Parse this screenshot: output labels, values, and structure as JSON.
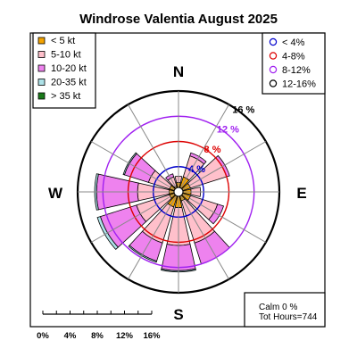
{
  "chart_data": {
    "type": "windrose",
    "title": "Windrose  Valentia August 2025",
    "compass_labels": {
      "north": "N",
      "east": "E",
      "south": "S",
      "west": "W"
    },
    "speed_legend": [
      {
        "label": "< 5  kt",
        "color": "#f4a300"
      },
      {
        "label": "5-10 kt",
        "color": "#ffc0cb"
      },
      {
        "label": "10-20 kt",
        "color": "#ee82ee"
      },
      {
        "label": "20-35 kt",
        "color": "#aee2e8"
      },
      {
        "label": "> 35 kt",
        "color": "#1a7a1a"
      }
    ],
    "ring_legend": [
      {
        "label": "< 4%",
        "color": "#0000cc"
      },
      {
        "label": "4-8%",
        "color": "#dd0000"
      },
      {
        "label": "8-12%",
        "color": "#a020f0"
      },
      {
        "label": "12-16%",
        "color": "#000000"
      }
    ],
    "rings": [
      {
        "value": 4,
        "label": "4 %",
        "color": "#0000cc"
      },
      {
        "value": 8,
        "label": "8 %",
        "color": "#dd0000"
      },
      {
        "value": 12,
        "label": "12 %",
        "color": "#a020f0"
      },
      {
        "value": 16,
        "label": "16 %",
        "color": "#000000"
      }
    ],
    "rmax": 16,
    "sector_width_deg": 30,
    "directions_deg": [
      0,
      30,
      60,
      90,
      120,
      150,
      180,
      210,
      240,
      270,
      300,
      330
    ],
    "series": [
      {
        "name": "< 5  kt",
        "values": [
          1.5,
          2.5,
          2.0,
          2.0,
          2.0,
          1.5,
          2.5,
          2.5,
          1.5,
          1.5,
          1.5,
          1.0
        ]
      },
      {
        "name": "5-10 kt",
        "values": [
          1.0,
          3.5,
          6.0,
          1.5,
          4.5,
          7.0,
          6.0,
          6.0,
          5.5,
          5.0,
          3.5,
          1.5
        ]
      },
      {
        "name": "10-20 kt",
        "values": [
          0.0,
          0.5,
          0.5,
          0.0,
          1.0,
          3.5,
          4.0,
          3.0,
          6.0,
          6.5,
          4.0,
          0.5
        ]
      },
      {
        "name": "20-35 kt",
        "values": [
          0.0,
          0.0,
          0.0,
          0.0,
          0.0,
          0.0,
          0.2,
          0.2,
          0.5,
          0.3,
          0.2,
          0.0
        ]
      },
      {
        "name": "> 35 kt",
        "values": [
          0,
          0,
          0,
          0,
          0,
          0,
          0,
          0,
          0,
          0,
          0,
          0
        ]
      }
    ],
    "calm_text": "Calm 0 %",
    "hours_text": "Tot Hours=744",
    "scale_ticks": [
      "0%",
      "4%",
      "8%",
      "12%",
      "16%"
    ]
  }
}
